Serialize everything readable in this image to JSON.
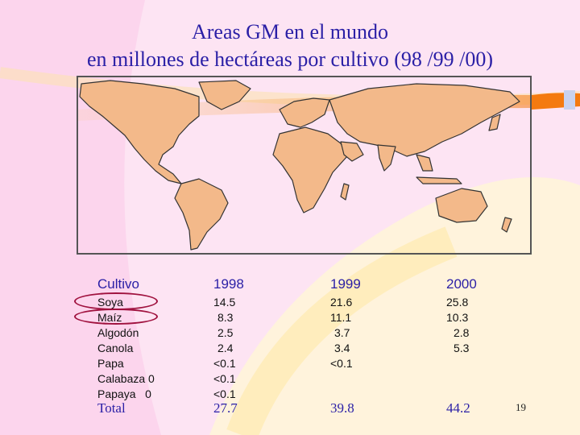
{
  "title_line1": "Areas GM en el mundo",
  "title_line2": "en millones de hectáreas por cultivo (98 /99 /00)",
  "table": {
    "headers": [
      "Cultivo",
      "1998",
      "1999",
      "2000"
    ],
    "crops": [
      "Soya",
      "Maíz",
      "Algodón",
      "Canola",
      "Papa",
      "Calabaza 0",
      "Papaya   0"
    ],
    "y1998": [
      "14.5",
      "8.3",
      "2.5",
      "2.4",
      "<0.1",
      "<0.1",
      "<0.1"
    ],
    "y1999": [
      "21.6",
      "11.1",
      "3.7",
      "3.4",
      "<0.1"
    ],
    "y2000": [
      "25.8",
      "10.3",
      "2.8",
      "5.3"
    ],
    "total_label": "Total",
    "totals": [
      "27.7",
      "39.8",
      "44.2"
    ]
  },
  "page_number": "19",
  "colors": {
    "background": "#fde4f3",
    "title": "#2a1fa6",
    "land": "#f3b98a",
    "accent_band": "#f47a10",
    "highlight_ring": "#a0123f"
  }
}
